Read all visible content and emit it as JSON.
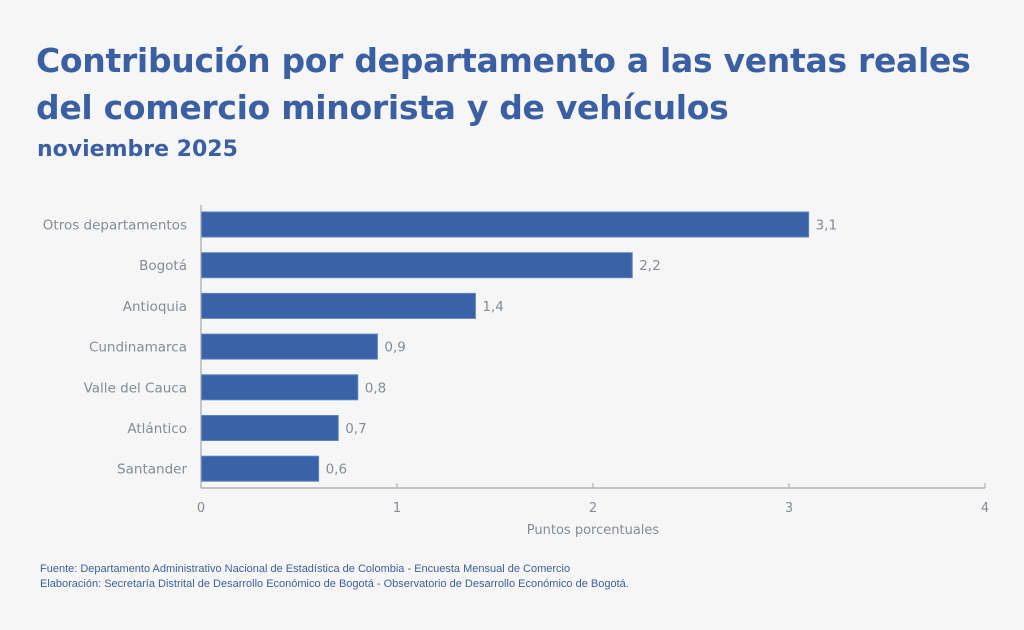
{
  "colors": {
    "title": "#3b5fa3",
    "bar": "#3a62a6",
    "bar_stroke": "#5b82c4",
    "axis": "#a3a7ae",
    "label": "#868b94",
    "background": "#f6f6f6"
  },
  "chart_data": {
    "type": "bar",
    "orientation": "horizontal",
    "title": "Contribución por departamento a las ventas reales del comercio minorista y de vehículos",
    "subtitle": "noviembre 2025",
    "categories": [
      "Otros departamentos",
      "Bogotá",
      "Antioquia",
      "Cundinamarca",
      "Valle del Cauca",
      "Atlántico",
      "Santander"
    ],
    "values": [
      3.1,
      2.2,
      1.4,
      0.9,
      0.8,
      0.7,
      0.6
    ],
    "data_labels": [
      "3,1",
      "2,2",
      "1,4",
      "0,9",
      "0,8",
      "0,7",
      "0,6"
    ],
    "xlabel": "Puntos porcentuales",
    "ylabel": "",
    "xlim": [
      0,
      4
    ],
    "x_ticks": [
      0,
      1,
      2,
      3,
      4
    ],
    "x_tick_labels": [
      "0",
      "1",
      "2",
      "3",
      "4"
    ],
    "grid": false,
    "legend": "none"
  },
  "footer": {
    "source": "Fuente: Departamento Administrativo Nacional de Estadística de Colombia - Encuesta Mensual de Comercio",
    "elaboration": "Elaboración: Secretaría Distrital de Desarrollo Económico de Bogotá - Observatorio de Desarrollo Económico de Bogotá."
  }
}
